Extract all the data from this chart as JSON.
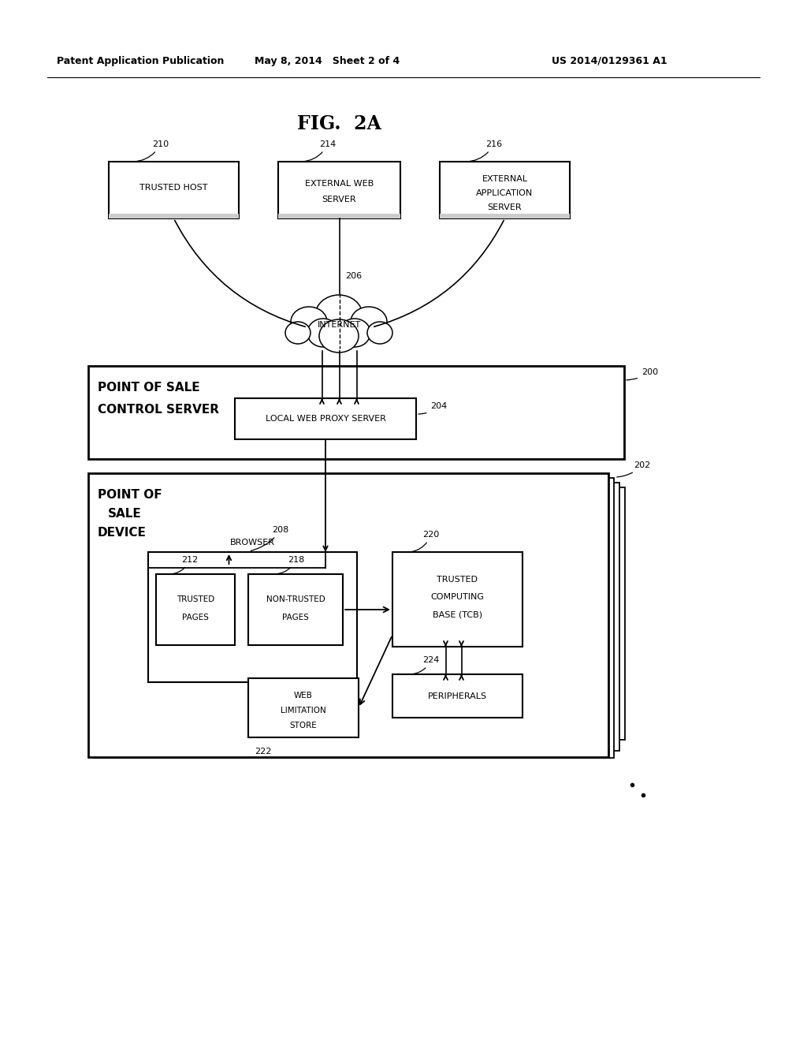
{
  "bg_color": "#ffffff",
  "line_color": "#000000",
  "fig_width": 10.24,
  "fig_height": 13.2,
  "header_left": "Patent Application Publication",
  "header_mid": "May 8, 2014   Sheet 2 of 4",
  "header_right": "US 2014/0129361 A1",
  "fig_title": "FIG.  2A"
}
